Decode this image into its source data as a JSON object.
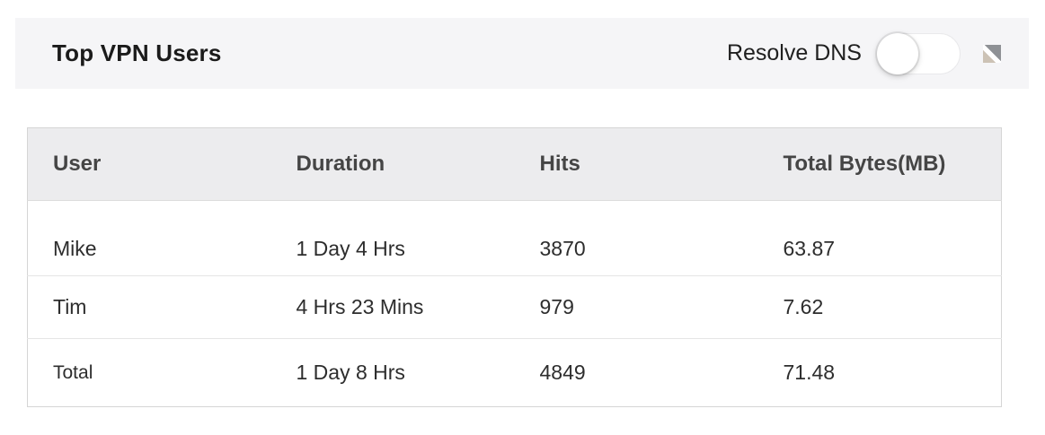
{
  "header": {
    "title": "Top VPN Users",
    "toggle": {
      "label": "Resolve DNS",
      "state": "off"
    },
    "expand_icon": "resize-diagonal-icon"
  },
  "table": {
    "columns": [
      "User",
      "Duration",
      "Hits",
      "Total Bytes(MB)"
    ],
    "rows": [
      {
        "user": "Mike",
        "duration": "1 Day 4 Hrs",
        "hits": "3870",
        "total_bytes_mb": "63.87"
      },
      {
        "user": "Tim",
        "duration": "4 Hrs 23 Mins",
        "hits": "979",
        "total_bytes_mb": "7.62"
      },
      {
        "user": "Total",
        "duration": "1 Day 8 Hrs",
        "hits": "4849",
        "total_bytes_mb": "71.48"
      }
    ]
  },
  "colors": {
    "header_bar_bg": "#f5f5f7",
    "table_header_bg": "#ececee",
    "table_border": "#d5d5d5",
    "row_divider": "#e5e5e5",
    "title_text": "#1b1b1b",
    "column_header_text": "#454545",
    "cell_text": "#2d2d2d",
    "resize_icon_gray": "#8e9195",
    "resize_icon_tan": "#ccc2b5"
  }
}
